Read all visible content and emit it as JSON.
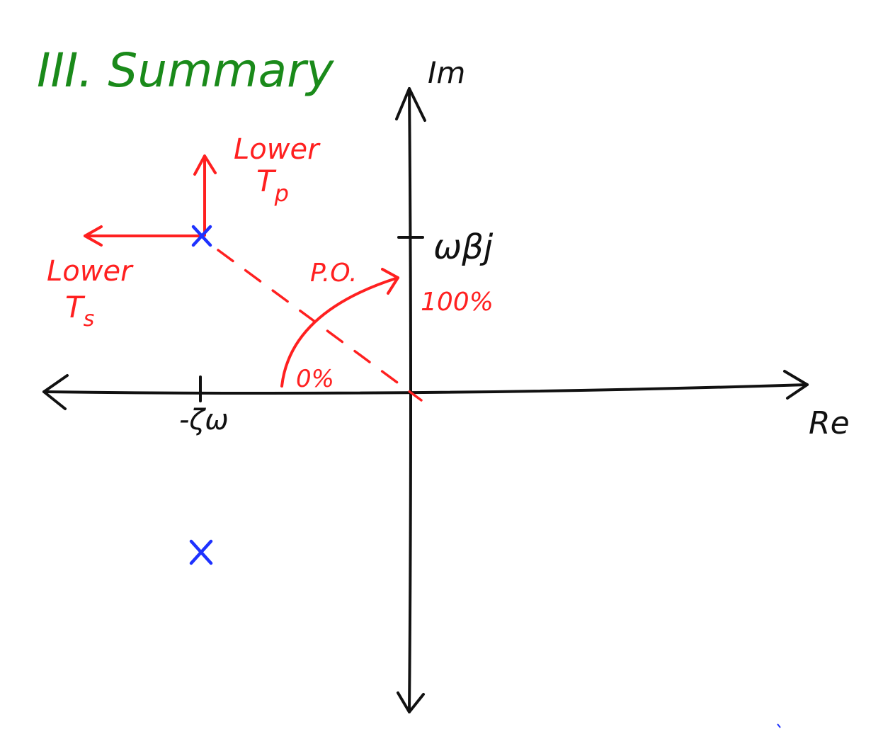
{
  "title": {
    "text": "III. Summary",
    "color": "#1a8a1a"
  },
  "axes": {
    "imag_label": "Im",
    "real_label": "Re",
    "tick_imag_label": "ωβj",
    "tick_real_label": "-ζω",
    "color": "#111111"
  },
  "annotations": {
    "lower_tp": {
      "line1": "Lower",
      "line2": "T",
      "sub": "p"
    },
    "lower_ts": {
      "line1": "Lower",
      "line2": "T",
      "sub": "s"
    },
    "po_label": "P.O.",
    "po_high": "100%",
    "po_low": "0%",
    "color": "#ff2020"
  },
  "poles": {
    "count": 2,
    "marker": "×",
    "color": "#1e32ff"
  }
}
